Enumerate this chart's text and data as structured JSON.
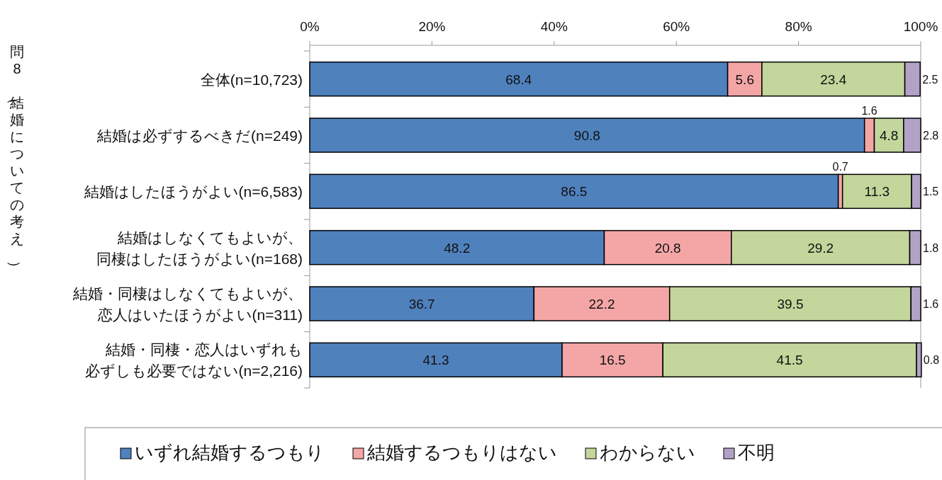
{
  "chart_data": {
    "type": "bar",
    "orientation": "horizontal",
    "stacked": true,
    "ylabel": "問8（結婚についての考え）",
    "categories": [
      "全体(n=10,723)",
      "結婚は必ずするべきだ(n=249)",
      "結婚はしたほうがよい(n=6,583)",
      "結婚はしなくてもよいが、同棲はしたほうがよい(n=168)",
      "結婚・同棲はしなくてもよいが、恋人はいたほうがよい(n=311)",
      "結婚・同棲・恋人はいずれも必ずしも必要ではない(n=2,216)"
    ],
    "series": [
      {
        "name": "いずれ結婚するつもり",
        "color": "#4f81bd",
        "values": [
          68.4,
          90.8,
          86.5,
          48.2,
          36.7,
          41.3
        ]
      },
      {
        "name": "結婚するつもりはない",
        "color": "#f4a6a6",
        "values": [
          5.6,
          1.6,
          0.7,
          20.8,
          22.2,
          16.5
        ]
      },
      {
        "name": "わからない",
        "color": "#c3d69b",
        "values": [
          23.4,
          4.8,
          11.3,
          29.2,
          39.5,
          41.5
        ]
      },
      {
        "name": "不明",
        "color": "#b3a2c7",
        "values": [
          2.5,
          2.8,
          1.5,
          1.8,
          1.6,
          0.8
        ]
      }
    ],
    "xlim": [
      0,
      100
    ],
    "xticks": [
      {
        "value": 0,
        "label": "0%"
      },
      {
        "value": 20,
        "label": "20%"
      },
      {
        "value": 40,
        "label": "40%"
      },
      {
        "value": 60,
        "label": "60%"
      },
      {
        "value": 80,
        "label": "80%"
      },
      {
        "value": 100,
        "label": "100%"
      }
    ],
    "grid": false,
    "data_labels": true,
    "legend": "bottom"
  }
}
